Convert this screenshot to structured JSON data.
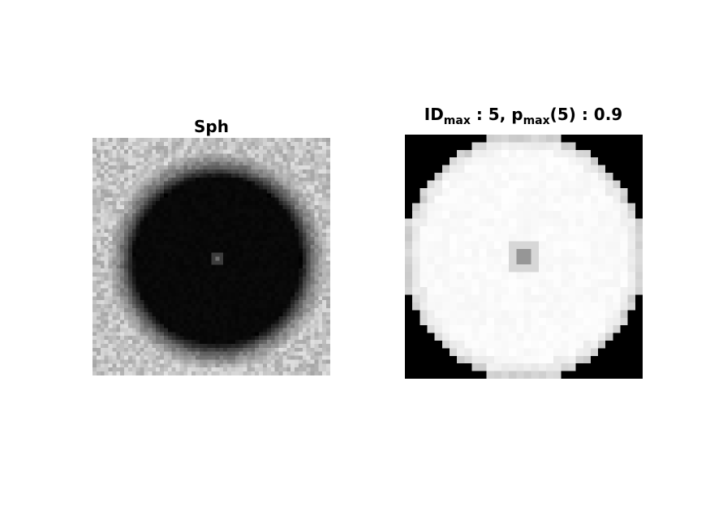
{
  "left": {
    "title": "Sph"
  },
  "right": {
    "title_parts": {
      "a": "ID",
      "a_sub": "max",
      "b": " : 5, p",
      "b_sub": "max",
      "c": "(5) : 0.9"
    }
  },
  "colors": {
    "background": "#ffffff",
    "left_noise_base": "#c4c4c4",
    "left_disk": "#050505",
    "right_disk": "#fafafa",
    "right_corners": "#000000"
  }
}
